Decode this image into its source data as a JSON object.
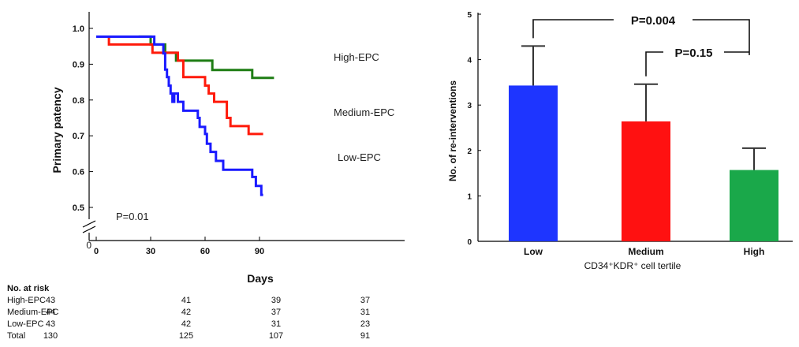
{
  "chart_data": [
    {
      "type": "line",
      "subtype": "kaplan-meier",
      "ylabel": "Primary patency",
      "xlabel": "Days",
      "xticks": [
        "0",
        "30",
        "60",
        "90"
      ],
      "yticks": [
        "1.0",
        "0.9",
        "0.8",
        "0.7",
        "0.6",
        "0.5"
      ],
      "y_origin_label": "0",
      "xlim": [
        -4,
        100
      ],
      "ylim": [
        0.5,
        1.0
      ],
      "axis_break": true,
      "annotation": "P=0.01",
      "series": [
        {
          "name": "High-EPC",
          "color": "#1e7d14",
          "x": [
            0,
            24,
            30,
            38,
            44,
            64,
            86,
            98
          ],
          "y": [
            0.977,
            0.977,
            0.955,
            0.932,
            0.91,
            0.884,
            0.862,
            0.862
          ]
        },
        {
          "name": "Medium-EPC",
          "color": "#ff1a0a",
          "x": [
            0,
            7,
            31,
            38,
            45,
            48,
            60,
            62,
            65,
            72,
            74,
            84,
            92
          ],
          "y": [
            0.977,
            0.955,
            0.932,
            0.932,
            0.91,
            0.864,
            0.84,
            0.818,
            0.795,
            0.75,
            0.727,
            0.705,
            0.705
          ],
          "label_y": 0.775
        },
        {
          "name": "Low-EPC",
          "color": "#1a1aff",
          "x": [
            0,
            32,
            37,
            38,
            39,
            40,
            41,
            42,
            43,
            45,
            48,
            51,
            56,
            57,
            60,
            61,
            63,
            66,
            70,
            77,
            86,
            88,
            90,
            91,
            92
          ],
          "y": [
            0.977,
            0.955,
            0.93,
            0.885,
            0.864,
            0.84,
            0.818,
            0.795,
            0.818,
            0.795,
            0.77,
            0.77,
            0.75,
            0.725,
            0.705,
            0.678,
            0.655,
            0.63,
            0.605,
            0.605,
            0.585,
            0.56,
            0.56,
            0.535,
            0.535
          ]
        }
      ]
    },
    {
      "type": "bar",
      "categories": [
        "Low",
        "Medium",
        "High"
      ],
      "values": [
        3.43,
        2.64,
        1.57
      ],
      "errors": [
        0.87,
        0.82,
        0.48
      ],
      "colors": [
        "#1e35ff",
        "#ff1111",
        "#1aa84a"
      ],
      "ylabel": "No. of re-interventions",
      "xlabel": "CD34⁺KDR⁺ cell tertile",
      "ylim": [
        0,
        5
      ],
      "yticks": [
        "0",
        "1",
        "2",
        "3",
        "4",
        "5"
      ],
      "brackets": [
        {
          "label": "P=0.004",
          "from": "Low",
          "to": "High"
        },
        {
          "label": "P=0.15",
          "from": "Medium",
          "to": "High"
        }
      ]
    }
  ],
  "risk_table": {
    "title": "No. at risk",
    "rows": [
      {
        "label": "High-EPC",
        "values": [
          "43",
          "41",
          "39",
          "37"
        ]
      },
      {
        "label": "Medium-EPC",
        "values": [
          "44",
          "42",
          "37",
          "31"
        ]
      },
      {
        "label": "Low-EPC",
        "values": [
          "43",
          "42",
          "31",
          "23"
        ]
      },
      {
        "label": "Total",
        "values": [
          "130",
          "125",
          "107",
          "91"
        ]
      }
    ]
  }
}
